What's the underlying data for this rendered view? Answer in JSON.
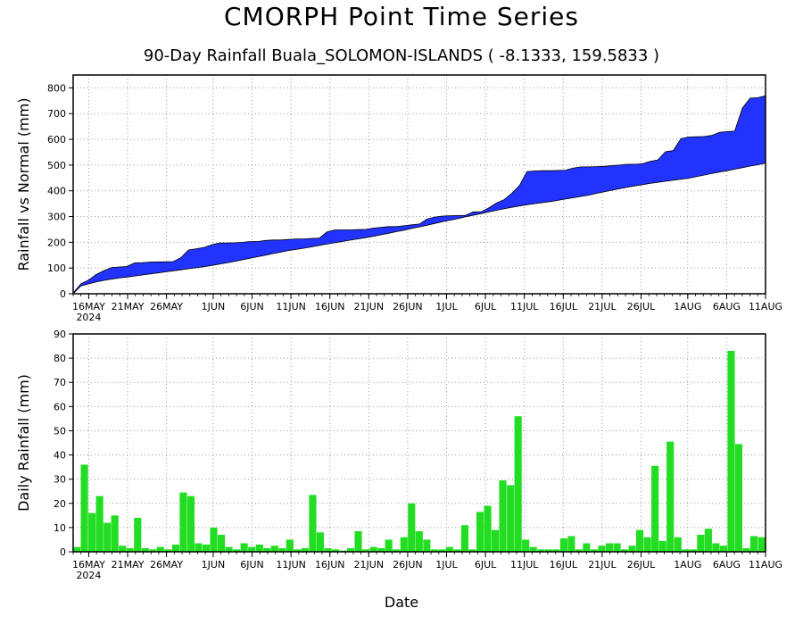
{
  "title": "CMORPH Point Time Series",
  "subtitle": "90-Day Rainfall Buala_SOLOMON-ISLANDS ( -8.1333, 159.5833 )",
  "xlabel": "Date",
  "year_label": "2024",
  "colors": {
    "upper_fill": "#2233ff",
    "bars": "#22dd22",
    "grid": "#999999"
  },
  "chart_data": [
    {
      "type": "area",
      "title": "",
      "ylabel": "Rainfall vs Normal (mm)",
      "xlabel": "Date",
      "ylim": [
        0,
        850
      ],
      "yticks": [
        0,
        100,
        200,
        300,
        400,
        500,
        600,
        700,
        800
      ],
      "x_ticks": [
        "16MAY",
        "21MAY",
        "26MAY",
        "1JUN",
        "6JUN",
        "11JUN",
        "16JUN",
        "21JUN",
        "26JUN",
        "1JUL",
        "6JUL",
        "11JUL",
        "16JUL",
        "21JUL",
        "26JUL",
        "1AUG",
        "6AUG",
        "11AUG"
      ],
      "grid": true,
      "x_start": "2024-05-14",
      "x_end": "2024-08-11",
      "series": [
        {
          "name": "",
          "values": [
            3,
            38,
            53,
            75,
            90,
            102,
            104,
            106,
            120,
            121,
            123,
            124,
            124,
            125,
            140,
            170,
            175,
            180,
            190,
            197,
            197,
            198,
            200,
            203,
            203,
            207,
            209,
            209,
            211,
            213,
            213,
            215,
            216,
            240,
            248,
            248,
            248,
            249,
            250,
            255,
            258,
            261,
            261,
            264,
            268,
            271,
            290,
            298,
            302,
            303,
            304,
            305,
            318,
            318,
            333,
            352,
            365,
            390,
            420,
            475,
            477,
            478,
            478,
            479,
            480,
            488,
            493,
            493,
            494,
            495,
            498,
            500,
            503,
            503,
            505,
            514,
            520,
            552,
            556,
            603,
            609,
            610,
            611,
            615,
            627,
            630,
            632,
            722,
            760,
            762,
            769
          ]
        },
        {
          "name": "",
          "values": [
            0,
            30,
            38,
            46,
            52,
            57,
            61,
            65,
            69,
            73,
            77,
            81,
            85,
            89,
            93,
            97,
            101,
            105,
            110,
            115,
            120,
            126,
            132,
            138,
            144,
            150,
            156,
            162,
            168,
            172,
            177,
            182,
            188,
            193,
            198,
            203,
            208,
            213,
            218,
            223,
            229,
            235,
            241,
            247,
            254,
            260,
            266,
            273,
            280,
            286,
            292,
            299,
            305,
            311,
            318,
            324,
            330,
            336,
            341,
            346,
            350,
            354,
            358,
            363,
            368,
            373,
            378,
            383,
            390,
            396,
            402,
            408,
            414,
            419,
            424,
            429,
            433,
            437,
            441,
            445,
            449,
            455,
            461,
            467,
            473,
            478,
            484,
            490,
            496,
            501,
            508
          ]
        }
      ]
    },
    {
      "type": "bar",
      "title": "",
      "ylabel": "Daily Rainfall (mm)",
      "xlabel": "Date",
      "ylim": [
        0,
        90
      ],
      "yticks": [
        0,
        10,
        20,
        30,
        40,
        50,
        60,
        70,
        80,
        90
      ],
      "x_ticks": [
        "16MAY",
        "21MAY",
        "26MAY",
        "1JUN",
        "6JUN",
        "11JUN",
        "16JUN",
        "21JUN",
        "26JUN",
        "1JUL",
        "6JUL",
        "11JUL",
        "16JUL",
        "21JUL",
        "26JUL",
        "1AUG",
        "6AUG",
        "11AUG"
      ],
      "grid": true,
      "x_start": "2024-05-14",
      "x_end": "2024-08-11",
      "values": [
        2,
        36,
        16,
        23,
        12,
        15,
        2.5,
        1.5,
        14,
        1.5,
        1,
        2,
        1,
        3,
        24.5,
        23,
        3.5,
        3,
        10,
        7,
        2,
        1,
        3.5,
        2,
        3,
        1.5,
        2.5,
        1.5,
        5,
        1,
        1.5,
        23.5,
        8,
        1.5,
        1,
        0.5,
        1.5,
        8.5,
        1,
        2,
        1.5,
        5,
        1,
        6,
        20,
        8.5,
        5,
        1,
        1,
        2,
        1,
        11,
        1,
        16.5,
        19,
        9,
        29.5,
        27.5,
        56,
        5,
        2,
        1,
        1,
        1,
        5.5,
        6.5,
        1,
        3.5,
        1,
        2.5,
        3.5,
        3.5,
        1,
        2.5,
        9,
        6,
        35.5,
        4.5,
        45.5,
        6,
        1,
        1,
        7,
        9.5,
        3.5,
        2.5,
        83,
        44.5,
        1.5,
        6.5,
        6
      ]
    }
  ]
}
